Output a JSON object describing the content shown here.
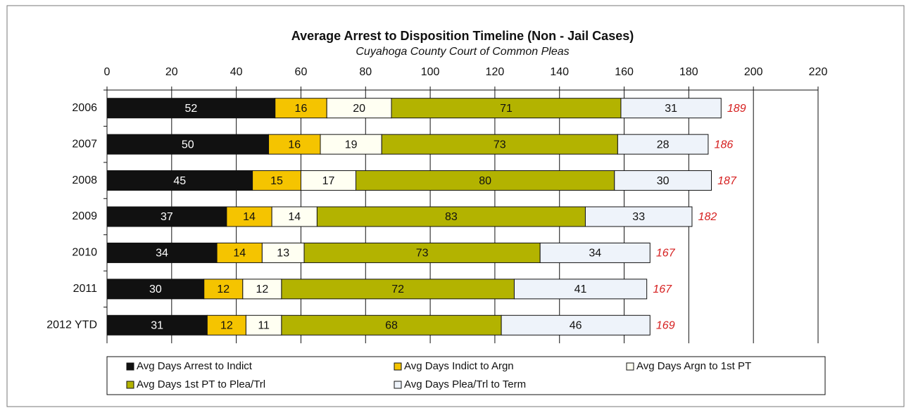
{
  "chart_data": {
    "type": "stacked_barh",
    "title": "Average Arrest to Disposition Timeline (Non - Jail Cases)",
    "subtitle": "Cuyahoga County Court of Common Pleas",
    "categories": [
      "2006",
      "2007",
      "2008",
      "2009",
      "2010",
      "2011",
      "2012 YTD"
    ],
    "series": [
      {
        "name": "Avg Days Arrest to Indict",
        "color": "#111111",
        "values": [
          52,
          50,
          45,
          37,
          34,
          30,
          31
        ]
      },
      {
        "name": "Avg Days Indict to Argn",
        "color": "#f5c400",
        "values": [
          16,
          16,
          15,
          14,
          14,
          12,
          12
        ]
      },
      {
        "name": "Avg Days Argn to 1st PT",
        "color": "#fffff2",
        "values": [
          20,
          19,
          17,
          14,
          13,
          12,
          11
        ]
      },
      {
        "name": "Avg Days 1st PT to Plea/Trl",
        "color": "#b3b300",
        "values": [
          71,
          73,
          80,
          83,
          73,
          72,
          68
        ]
      },
      {
        "name": "Avg Days Plea/Trl to Term",
        "color": "#eef3fa",
        "values": [
          31,
          28,
          30,
          33,
          34,
          41,
          46
        ]
      }
    ],
    "totals": [
      189,
      186,
      187,
      182,
      167,
      167,
      169
    ],
    "xlim": [
      0,
      220
    ],
    "xticks": [
      0,
      20,
      40,
      60,
      80,
      100,
      120,
      140,
      160,
      180,
      200,
      220
    ],
    "grid": true,
    "legend": "bottom"
  }
}
